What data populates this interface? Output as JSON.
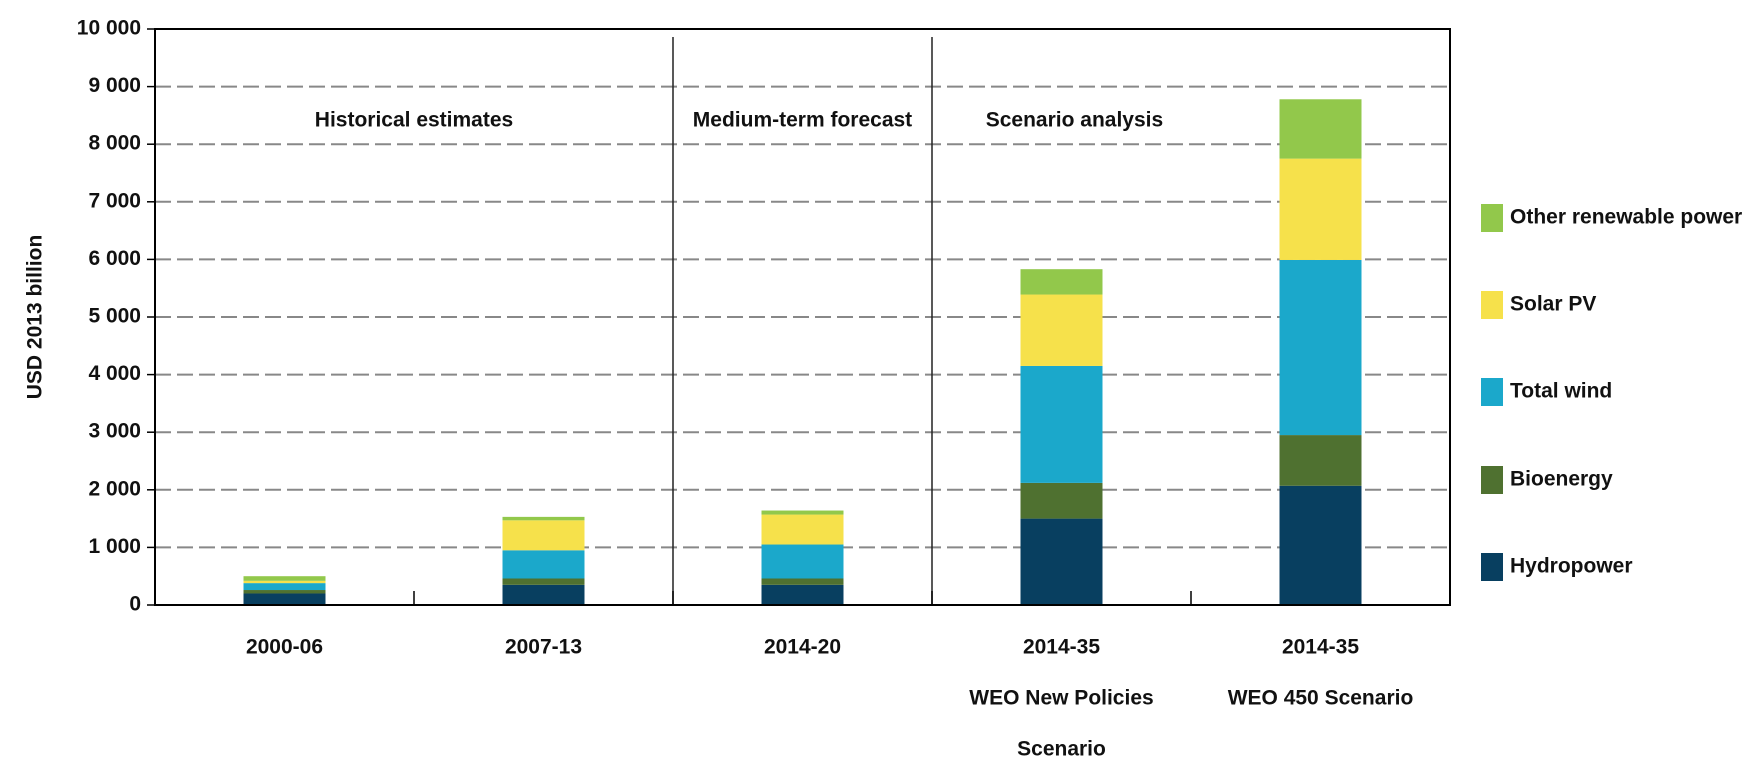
{
  "chart_data": {
    "type": "stacked_bar",
    "y_label": "USD 2013  billion",
    "categories": [
      [
        "2000-06"
      ],
      [
        "2007-13"
      ],
      [
        "2014-20"
      ],
      [
        "2014-35",
        "WEO New Policies",
        "Scenario"
      ],
      [
        "2014-35",
        "WEO 450 Scenario"
      ]
    ],
    "series": [
      {
        "name": "Hydropower",
        "color": "#083f60",
        "values": [
          200,
          350,
          350,
          1500,
          2070
        ]
      },
      {
        "name": "Bioenergy",
        "color": "#4f7130",
        "values": [
          60,
          110,
          110,
          620,
          880
        ]
      },
      {
        "name": "Total wind",
        "color": "#1ba8cb",
        "values": [
          120,
          490,
          590,
          2030,
          3040
        ]
      },
      {
        "name": "Solar PV",
        "color": "#f6e14b",
        "values": [
          40,
          520,
          520,
          1240,
          1760
        ]
      },
      {
        "name": "Other renewable  power",
        "color": "#92c84b",
        "values": [
          80,
          60,
          70,
          440,
          1030
        ]
      }
    ],
    "annotations": [
      "Historical estimates",
      "Medium-term forecast",
      "Scenario analysis"
    ],
    "ylim": [
      0,
      10000
    ],
    "yticks": [
      0,
      {
        "value": 1000,
        "label": "1 000"
      },
      {
        "value": 2000,
        "label": "2 000"
      },
      {
        "value": 3000,
        "label": "3 000"
      },
      {
        "value": 4000,
        "label": "4 000"
      },
      {
        "value": 5000,
        "label": "5 000"
      },
      {
        "value": 6000,
        "label": "6 000"
      },
      {
        "value": 7000,
        "label": "7 000"
      },
      {
        "value": 8000,
        "label": "8 000"
      },
      {
        "value": 9000,
        "label": "9 000"
      },
      {
        "value": 10000,
        "label": "10 000"
      }
    ],
    "grid": true,
    "legend": "right"
  }
}
